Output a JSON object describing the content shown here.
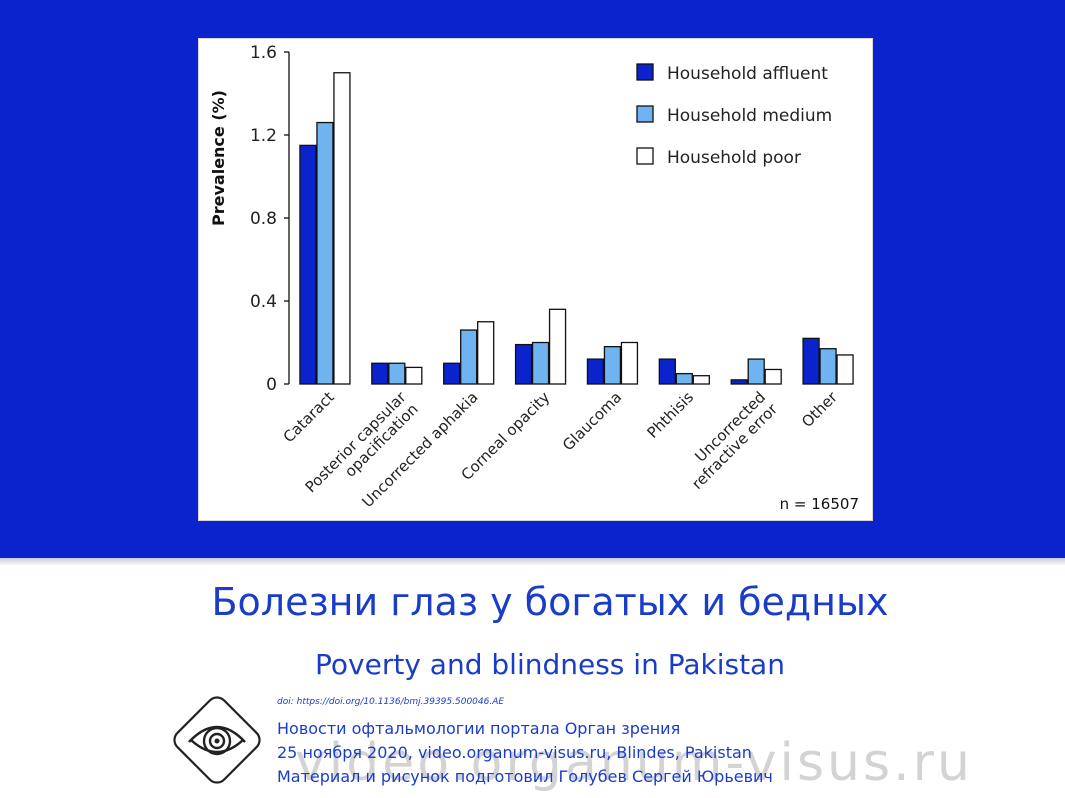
{
  "chart_data": {
    "type": "bar",
    "ylabel": "Prevalence (%)",
    "ylim": [
      0,
      1.6
    ],
    "yticks": [
      "0",
      "0.4",
      "0.8",
      "1.2",
      "1.6"
    ],
    "categories": [
      [
        "Cataract"
      ],
      [
        "Posterior capsular",
        "opacification"
      ],
      [
        "Uncorrected aphakia"
      ],
      [
        "Corneal opacity"
      ],
      [
        "Glaucoma"
      ],
      [
        "Phthisis"
      ],
      [
        "Uncorrected",
        "refractive error"
      ],
      [
        "Other"
      ]
    ],
    "series": [
      {
        "name": "Household affluent",
        "color": "#0b23cc",
        "values": [
          1.15,
          0.1,
          0.1,
          0.19,
          0.12,
          0.12,
          0.02,
          0.22
        ]
      },
      {
        "name": "Household medium",
        "color": "#6fb3f0",
        "values": [
          1.26,
          0.1,
          0.26,
          0.2,
          0.18,
          0.05,
          0.12,
          0.17
        ]
      },
      {
        "name": "Household poor",
        "color": "#ffffff",
        "values": [
          1.5,
          0.08,
          0.3,
          0.36,
          0.2,
          0.04,
          0.07,
          0.14
        ]
      }
    ],
    "legend_position": "top-right",
    "note": "n = 16507"
  },
  "slide": {
    "title_ru": "Болезни глаз у богатых и бедных",
    "title_en": "Poverty and blindness in Pakistan",
    "doi": "doi: https://doi.org/10.1136/bmj.39395.500046.AE",
    "credit_line1": "Новости офтальмологии портала Орган зрения",
    "credit_line2": "25 ноября 2020, video.organum-visus.ru, Blindes, Pakistan",
    "credit_line3": "Материал и рисунок подготовил Голубев Сергей Юрьевич",
    "watermark": "video.organum-visus.ru",
    "colors": {
      "band": "#0b23cc",
      "title": "#1a3dc8"
    }
  }
}
